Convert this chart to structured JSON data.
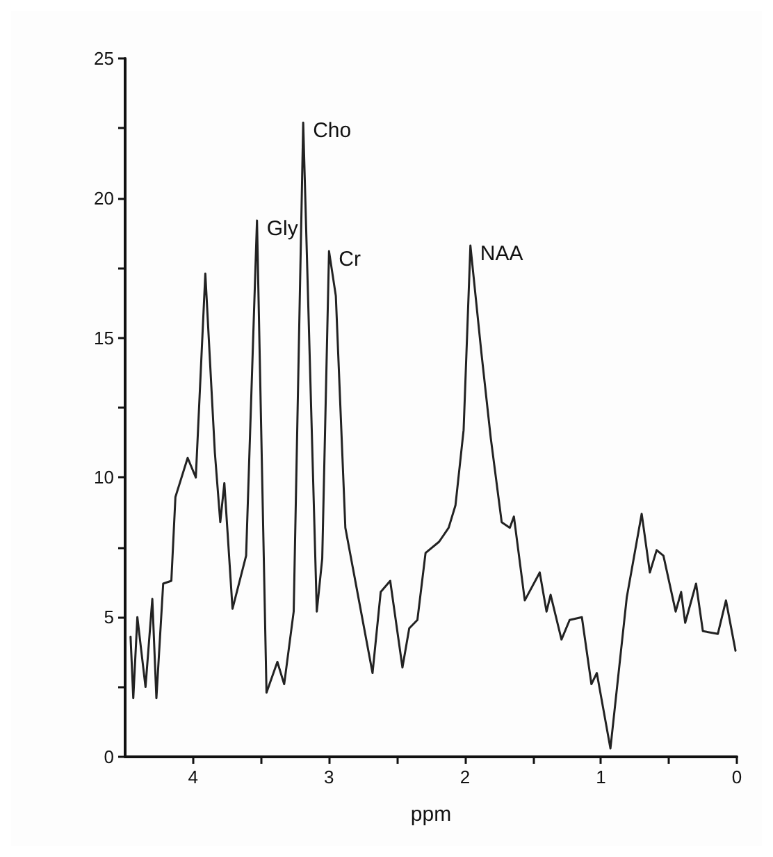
{
  "chart_data": {
    "type": "line",
    "xlabel": "ppm",
    "xlim": [
      4.5,
      0
    ],
    "ylim": [
      0,
      25
    ],
    "xticks": [
      4,
      {
        "value": 3.5,
        "label": null
      },
      3,
      {
        "value": 2.5,
        "label": null
      },
      2,
      {
        "value": 1.5,
        "label": null
      },
      1,
      {
        "value": 0.5,
        "label": null
      },
      0
    ],
    "yticks": [
      0,
      {
        "value": 2.5,
        "label": null
      },
      5,
      {
        "value": 7.5,
        "label": null
      },
      10,
      {
        "value": 12.5,
        "label": null
      },
      15,
      {
        "value": 17.5,
        "label": null
      },
      20,
      {
        "value": 22.5,
        "label": null
      },
      25
    ],
    "grid": false,
    "marker": "none",
    "line_style": "solid",
    "annotations": [
      {
        "text": "Gly",
        "x": 3.53,
        "y": 19.2
      },
      {
        "text": "Cho",
        "x": 3.19,
        "y": 22.7
      },
      {
        "text": "Cr",
        "x": 3.0,
        "y": 18.1
      },
      {
        "text": "NAA",
        "x": 1.96,
        "y": 18.3
      }
    ],
    "series": [
      {
        "color": "#222222",
        "x": [
          4.46,
          4.44,
          4.41,
          4.35,
          4.3,
          4.27,
          4.22,
          4.16,
          4.13,
          4.04,
          3.98,
          3.91,
          3.84,
          3.8,
          3.77,
          3.71,
          3.61,
          3.53,
          3.46,
          3.38,
          3.33,
          3.26,
          3.19,
          3.09,
          3.05,
          3.0,
          2.95,
          2.88,
          2.68,
          2.62,
          2.55,
          2.46,
          2.41,
          2.35,
          2.29,
          2.19,
          2.12,
          2.07,
          2.01,
          1.96,
          1.88,
          1.81,
          1.73,
          1.67,
          1.64,
          1.56,
          1.45,
          1.4,
          1.37,
          1.29,
          1.23,
          1.14,
          1.07,
          1.03,
          0.93,
          0.81,
          0.7,
          0.64,
          0.59,
          0.54,
          0.45,
          0.41,
          0.38,
          0.3,
          0.25,
          0.14,
          0.08,
          0.01
        ],
        "values": [
          4.3,
          2.1,
          5.0,
          2.5,
          5.65,
          2.1,
          6.2,
          6.3,
          9.3,
          10.7,
          10.0,
          17.3,
          10.9,
          8.4,
          9.8,
          5.3,
          7.2,
          19.2,
          2.3,
          3.4,
          2.6,
          5.2,
          22.7,
          5.2,
          7.1,
          18.1,
          16.5,
          8.2,
          3.0,
          5.9,
          6.3,
          3.2,
          4.6,
          4.9,
          7.3,
          7.7,
          8.2,
          9.0,
          11.7,
          18.3,
          14.5,
          11.4,
          8.4,
          8.2,
          8.6,
          5.6,
          6.6,
          5.2,
          5.8,
          4.2,
          4.9,
          5.0,
          2.6,
          3.0,
          0.3,
          5.7,
          8.7,
          6.6,
          7.4,
          7.2,
          5.2,
          5.9,
          4.8,
          6.2,
          4.5,
          4.4,
          5.6,
          3.8
        ]
      }
    ]
  }
}
